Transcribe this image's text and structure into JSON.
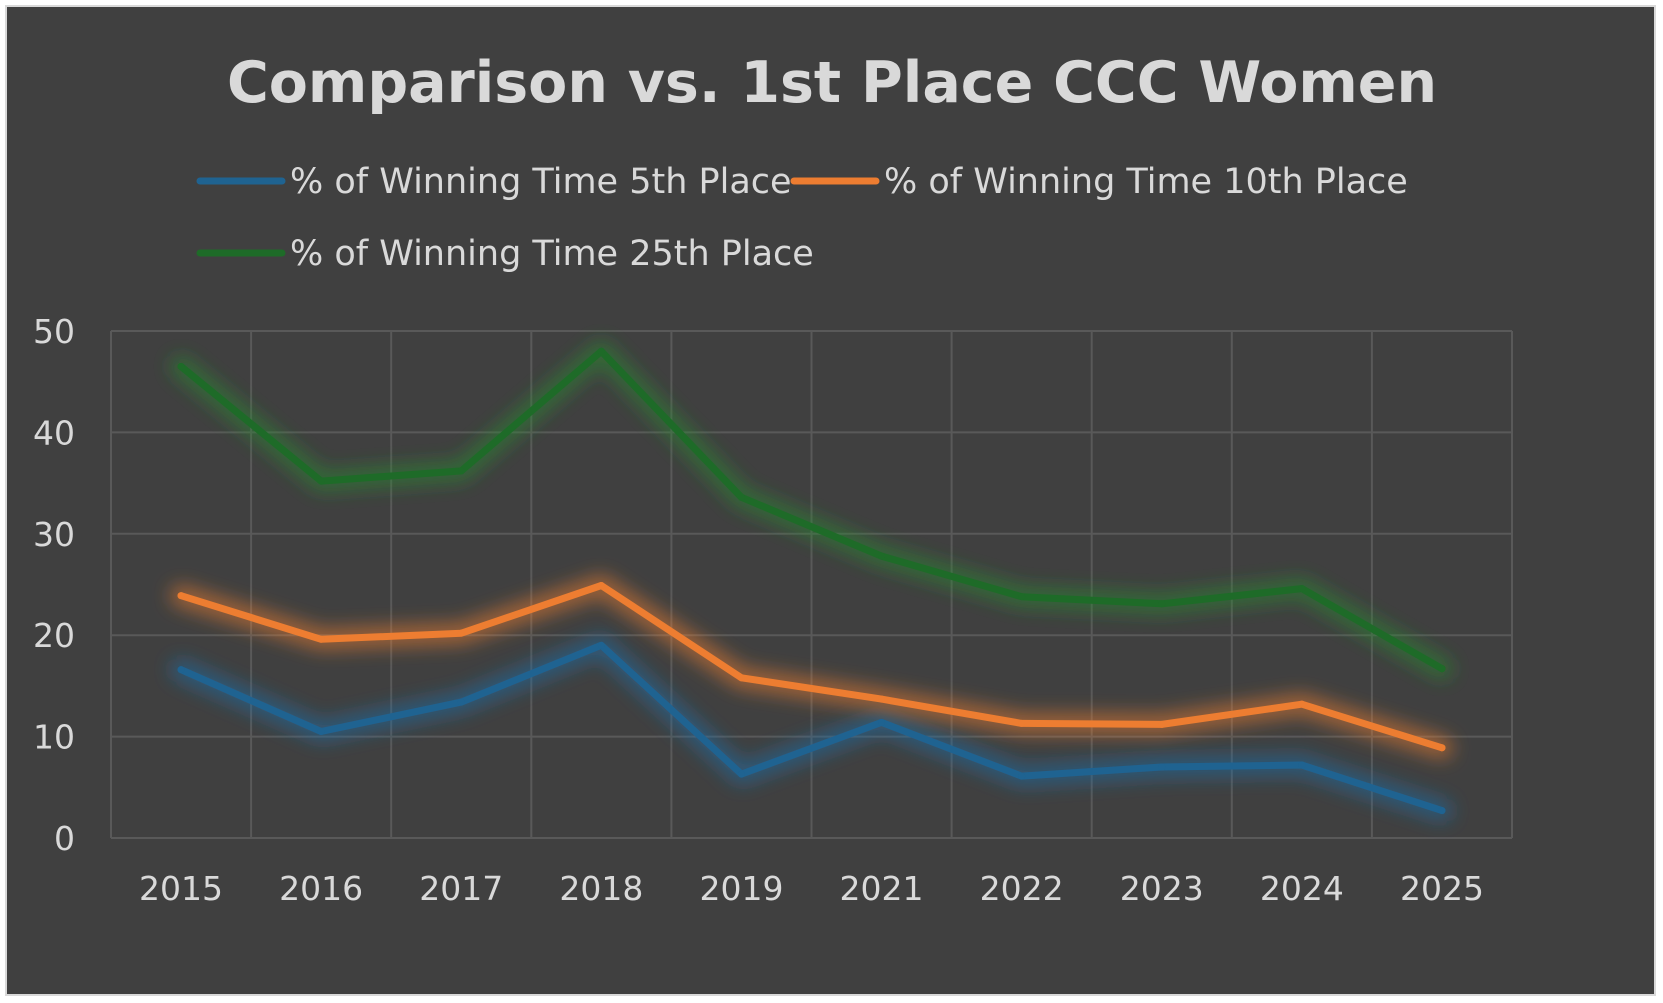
{
  "chart_data": {
    "type": "line",
    "title": "Comparison vs. 1st Place CCC Women",
    "xlabel": "",
    "ylabel": "",
    "categories": [
      "2015",
      "2016",
      "2017",
      "2018",
      "2019",
      "2021",
      "2022",
      "2023",
      "2024",
      "2025"
    ],
    "ylim": [
      0,
      50
    ],
    "yticks": [
      0,
      10,
      20,
      30,
      40,
      50
    ],
    "grid": true,
    "legend_position": "top",
    "series": [
      {
        "name": "% of Winning Time 5th Place",
        "color": "#1f6391",
        "glow": "#1f6fa8",
        "values": [
          16.6,
          10.5,
          13.4,
          19.0,
          6.3,
          11.4,
          6.1,
          7.0,
          7.2,
          2.7
        ]
      },
      {
        "name": "% of Winning Time 10th Place",
        "color": "#ed7d31",
        "glow": "#ed7d31",
        "values": [
          23.9,
          19.6,
          20.2,
          24.9,
          15.8,
          13.7,
          11.3,
          11.2,
          13.2,
          8.9
        ]
      },
      {
        "name": "% of Winning Time 25th Place",
        "color": "#1e6b28",
        "glow": "#2a8a30",
        "values": [
          46.5,
          35.2,
          36.2,
          48.0,
          33.6,
          27.8,
          23.8,
          23.1,
          24.6,
          16.7
        ]
      }
    ]
  }
}
